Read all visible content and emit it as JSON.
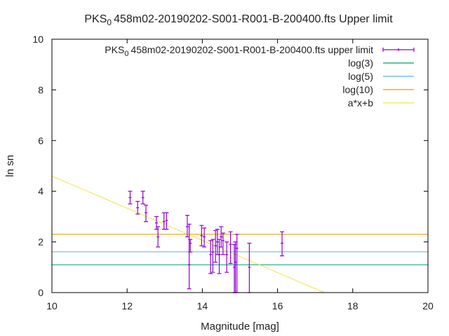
{
  "chart_data": {
    "type": "scatter",
    "title_main": "PKS",
    "title_sub": "0",
    "title_rest": "458m02-20190202-S001-R001-B-200400.fts Upper limit",
    "xlabel": "Magnitude [mag]",
    "ylabel": "ln sn",
    "xlim": [
      10,
      20
    ],
    "ylim": [
      0,
      10
    ],
    "x_ticks": [
      10,
      12,
      14,
      16,
      18,
      20
    ],
    "y_ticks": [
      0,
      2,
      4,
      6,
      8,
      10
    ],
    "grid": false,
    "legend_position": "top-right",
    "legend": [
      {
        "main": "PKS",
        "sub": "0",
        "rest": "458m02-20190202-S001-R001-B-200400.fts upper limit",
        "color": "#9400d3",
        "kind": "errorbar"
      },
      {
        "label": "log(3)",
        "color": "#009e73",
        "kind": "line"
      },
      {
        "label": "log(5)",
        "color": "#56b4e9",
        "kind": "line"
      },
      {
        "label": "log(10)",
        "color": "#e69f00",
        "kind": "line"
      },
      {
        "label": "a*x+b",
        "color": "#f0e442",
        "kind": "line"
      }
    ],
    "hlines": [
      {
        "name": "log(3)",
        "y": 1.0986,
        "color": "#009e73"
      },
      {
        "name": "log(5)",
        "y": 1.6094,
        "color": "#56b4e9"
      },
      {
        "name": "log(10)",
        "y": 2.3026,
        "color": "#e69f00"
      }
    ],
    "fit_line": {
      "name": "a*x+b",
      "color": "#f0e442",
      "slope": -0.635,
      "intercept": 10.95
    },
    "series": [
      {
        "name": "upper limit",
        "color": "#9400d3",
        "points": [
          {
            "x": 12.08,
            "y": 3.75,
            "lo": 3.5,
            "hi": 4.0
          },
          {
            "x": 12.28,
            "y": 3.35,
            "lo": 3.1,
            "hi": 3.6
          },
          {
            "x": 12.42,
            "y": 3.75,
            "lo": 3.5,
            "hi": 4.0
          },
          {
            "x": 12.5,
            "y": 3.15,
            "lo": 2.8,
            "hi": 3.45
          },
          {
            "x": 12.78,
            "y": 2.75,
            "lo": 2.5,
            "hi": 3.0
          },
          {
            "x": 12.82,
            "y": 2.2,
            "lo": 1.8,
            "hi": 2.6
          },
          {
            "x": 12.98,
            "y": 2.8,
            "lo": 2.5,
            "hi": 3.15
          },
          {
            "x": 13.05,
            "y": 2.85,
            "lo": 2.5,
            "hi": 3.15
          },
          {
            "x": 13.6,
            "y": 2.6,
            "lo": 2.2,
            "hi": 3.05
          },
          {
            "x": 13.65,
            "y": 1.1,
            "lo": 0.15,
            "hi": 2.7
          },
          {
            "x": 13.68,
            "y": 1.95,
            "lo": 1.6,
            "hi": 2.1
          },
          {
            "x": 13.98,
            "y": 2.25,
            "lo": 1.85,
            "hi": 2.65
          },
          {
            "x": 14.05,
            "y": 2.2,
            "lo": 1.8,
            "hi": 2.55
          },
          {
            "x": 14.22,
            "y": 1.5,
            "lo": 0.75,
            "hi": 2.05
          },
          {
            "x": 14.28,
            "y": 1.6,
            "lo": 0.8,
            "hi": 2.1
          },
          {
            "x": 14.35,
            "y": 1.85,
            "lo": 1.2,
            "hi": 2.45
          },
          {
            "x": 14.4,
            "y": 2.0,
            "lo": 1.5,
            "hi": 2.5
          },
          {
            "x": 14.45,
            "y": 1.5,
            "lo": 0.75,
            "hi": 2.1
          },
          {
            "x": 14.5,
            "y": 2.2,
            "lo": 1.8,
            "hi": 2.6
          },
          {
            "x": 14.55,
            "y": 2.05,
            "lo": 1.5,
            "hi": 2.35
          },
          {
            "x": 14.65,
            "y": 1.5,
            "lo": 0.8,
            "hi": 2.0
          },
          {
            "x": 14.75,
            "y": 1.9,
            "lo": 1.15,
            "hi": 2.4
          },
          {
            "x": 14.85,
            "y": 1.0,
            "lo": 0.0,
            "hi": 1.9
          },
          {
            "x": 14.88,
            "y": 1.2,
            "lo": 0.0,
            "hi": 2.0
          },
          {
            "x": 14.92,
            "y": 1.75,
            "lo": 0.0,
            "hi": 2.3
          },
          {
            "x": 15.25,
            "y": 1.0,
            "lo": 0.0,
            "hi": 1.95
          },
          {
            "x": 16.12,
            "y": 1.95,
            "lo": 1.45,
            "hi": 2.4
          }
        ]
      }
    ]
  }
}
